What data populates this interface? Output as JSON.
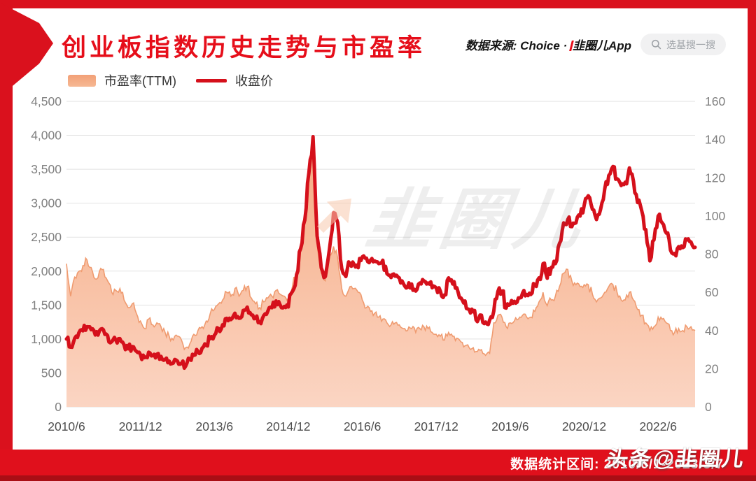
{
  "header": {
    "title": "创业板指数历史走势与市盈率",
    "source_prefix": "数据来源: Choice · ",
    "source_logo": "韭圈儿",
    "source_suffix": "App",
    "search_placeholder": "选基搜一搜"
  },
  "legend": {
    "pe_label": "市盈率(TTM)",
    "close_label": "收盘价"
  },
  "watermark_center": {
    "text": "韭圈儿"
  },
  "watermark_corner": "头条@韭圈儿",
  "footer": {
    "stats_range": "数据统计区间: 2010/6/1-2023/3/7"
  },
  "colors": {
    "frame_red": "#da111d",
    "title_red": "#e60e1a",
    "line_red": "#d5101b",
    "area_top": "#f6ab83",
    "area_bottom": "#fbd5c3",
    "area_edge": "#ef9b70",
    "grid": "#e2e2e2",
    "axis_text": "#808080",
    "xaxis_text": "#4d4d4d"
  },
  "chart_data": {
    "type": "line",
    "title": "创业板指数历史走势与市盈率",
    "x_start": "2010/6",
    "x_end": "2023/3",
    "x_step": "1 month",
    "x_tick_labels": [
      "2010/6",
      "2011/12",
      "2013/6",
      "2014/12",
      "2016/6",
      "2017/12",
      "2019/6",
      "2020/12",
      "2022/6"
    ],
    "x_tick_month_indices": [
      0,
      18,
      36,
      54,
      72,
      90,
      108,
      126,
      144
    ],
    "left_axis": {
      "label": "收盘价",
      "min": 0,
      "max": 4500,
      "step": 500
    },
    "right_axis": {
      "label": "市盈率(TTM)",
      "min": 0,
      "max": 160,
      "step": 20
    },
    "grid": true,
    "legend_position": "top-left",
    "series": [
      {
        "name": "收盘价",
        "type": "line",
        "axis": "left",
        "color": "#d5101b",
        "values": [
          1000,
          880,
          1010,
          1090,
          1120,
          1180,
          1137,
          1060,
          1120,
          1135,
          1050,
          960,
          985,
          1005,
          915,
          855,
          890,
          820,
          770,
          725,
          805,
          755,
          775,
          745,
          700,
          675,
          645,
          675,
          640,
          600,
          710,
          760,
          815,
          865,
          905,
          1005,
          1055,
          1155,
          1210,
          1305,
          1285,
          1380,
          1305,
          1420,
          1470,
          1355,
          1305,
          1255,
          1345,
          1410,
          1460,
          1560,
          1500,
          1480,
          1471,
          1700,
          1950,
          2330,
          2750,
          3450,
          3980,
          2520,
          2050,
          1920,
          2320,
          2860,
          2714,
          2040,
          1920,
          2110,
          2100,
          2050,
          2210,
          2190,
          2160,
          2150,
          2110,
          2160,
          1962,
          1905,
          1925,
          1900,
          1815,
          1760,
          1810,
          1705,
          1825,
          1855,
          1825,
          1755,
          1752,
          1705,
          1650,
          1900,
          1810,
          1755,
          1605,
          1560,
          1435,
          1400,
          1255,
          1350,
          1250,
          1280,
          1410,
          1700,
          1705,
          1455,
          1510,
          1555,
          1605,
          1675,
          1655,
          1655,
          1798,
          1900,
          2110,
          1895,
          2055,
          2110,
          2410,
          2710,
          2760,
          2655,
          2710,
          2810,
          2966,
          3110,
          2910,
          2760,
          2910,
          3210,
          3410,
          3540,
          3360,
          3260,
          3310,
          3520,
          3322,
          3010,
          2890,
          2610,
          2150,
          2460,
          2810,
          2710,
          2560,
          2310,
          2260,
          2360,
          2346,
          2460,
          2430,
          2350
        ]
      },
      {
        "name": "市盈率(TTM)",
        "type": "area",
        "axis": "right",
        "color": "#f6ab83",
        "values": [
          75,
          58,
          68,
          71,
          74,
          77,
          73,
          67,
          71,
          72,
          66,
          60,
          61,
          62,
          56,
          52,
          54,
          49,
          45,
          41,
          46,
          43,
          44,
          42,
          39,
          37,
          35,
          37,
          35,
          31,
          33,
          38,
          40,
          42,
          45,
          49,
          51,
          54,
          56,
          60,
          58,
          62,
          58,
          61,
          63,
          57,
          54,
          52,
          55,
          57,
          58,
          61,
          59,
          58,
          57,
          63,
          71,
          84,
          97,
          119,
          137,
          86,
          70,
          66,
          80,
          84,
          78,
          62,
          58,
          63,
          62,
          60,
          56,
          52,
          50,
          49,
          47,
          46,
          44,
          43,
          44,
          43,
          41,
          40,
          41,
          39,
          41,
          42,
          41,
          39,
          38,
          37,
          35,
          39,
          37,
          36,
          34,
          32,
          31,
          31,
          29,
          30,
          27,
          28,
          44,
          48,
          47,
          42,
          44,
          45,
          46,
          48,
          47,
          47,
          50,
          55,
          60,
          53,
          56,
          58,
          63,
          70,
          72,
          66,
          64,
          63,
          64,
          64,
          59,
          55,
          57,
          60,
          63,
          64,
          60,
          56,
          56,
          60,
          56,
          51,
          48,
          44,
          40,
          42,
          47,
          46,
          44,
          40,
          39,
          41,
          40,
          42,
          42,
          40
        ]
      }
    ]
  }
}
